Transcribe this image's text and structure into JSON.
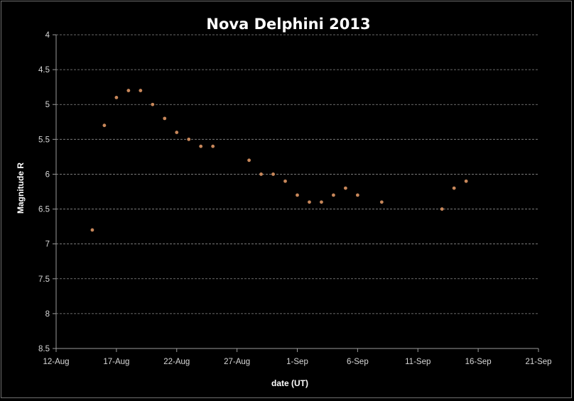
{
  "chart_data": {
    "type": "scatter",
    "title": "Nova Delphini 2013",
    "xlabel": "date (UT)",
    "ylabel": "Magnitude R",
    "x_axis_type": "date",
    "x_tick_labels": [
      "12-Aug",
      "17-Aug",
      "22-Aug",
      "27-Aug",
      "1-Sep",
      "6-Sep",
      "11-Sep",
      "16-Sep",
      "21-Sep"
    ],
    "xlim": [
      "2013-08-12",
      "2013-09-21"
    ],
    "y_tick_labels": [
      "4",
      "4.5",
      "5",
      "5.5",
      "6",
      "6.5",
      "7",
      "7.5",
      "8",
      "8.5"
    ],
    "ylim": [
      4,
      8.5
    ],
    "y_reversed": true,
    "grid": "horizontal dashed",
    "legend": "none",
    "marker_color": "#c8875a",
    "series": [
      {
        "points": [
          {
            "x": "2013-08-15",
            "y": 6.8
          },
          {
            "x": "2013-08-16",
            "y": 5.3
          },
          {
            "x": "2013-08-17",
            "y": 4.9
          },
          {
            "x": "2013-08-18",
            "y": 4.8
          },
          {
            "x": "2013-08-19",
            "y": 4.8
          },
          {
            "x": "2013-08-20",
            "y": 5.0
          },
          {
            "x": "2013-08-21",
            "y": 5.2
          },
          {
            "x": "2013-08-22",
            "y": 5.4
          },
          {
            "x": "2013-08-23",
            "y": 5.5
          },
          {
            "x": "2013-08-24",
            "y": 5.6
          },
          {
            "x": "2013-08-25",
            "y": 5.6
          },
          {
            "x": "2013-08-28",
            "y": 5.8
          },
          {
            "x": "2013-08-29",
            "y": 6.0
          },
          {
            "x": "2013-08-30",
            "y": 6.0
          },
          {
            "x": "2013-08-31",
            "y": 6.1
          },
          {
            "x": "2013-09-01",
            "y": 6.3
          },
          {
            "x": "2013-09-02",
            "y": 6.4
          },
          {
            "x": "2013-09-03",
            "y": 6.4
          },
          {
            "x": "2013-09-04",
            "y": 6.3
          },
          {
            "x": "2013-09-05",
            "y": 6.2
          },
          {
            "x": "2013-09-06",
            "y": 6.3
          },
          {
            "x": "2013-09-08",
            "y": 6.4
          },
          {
            "x": "2013-09-13",
            "y": 6.5
          },
          {
            "x": "2013-09-14",
            "y": 6.2
          },
          {
            "x": "2013-09-15",
            "y": 6.1
          }
        ]
      }
    ]
  }
}
